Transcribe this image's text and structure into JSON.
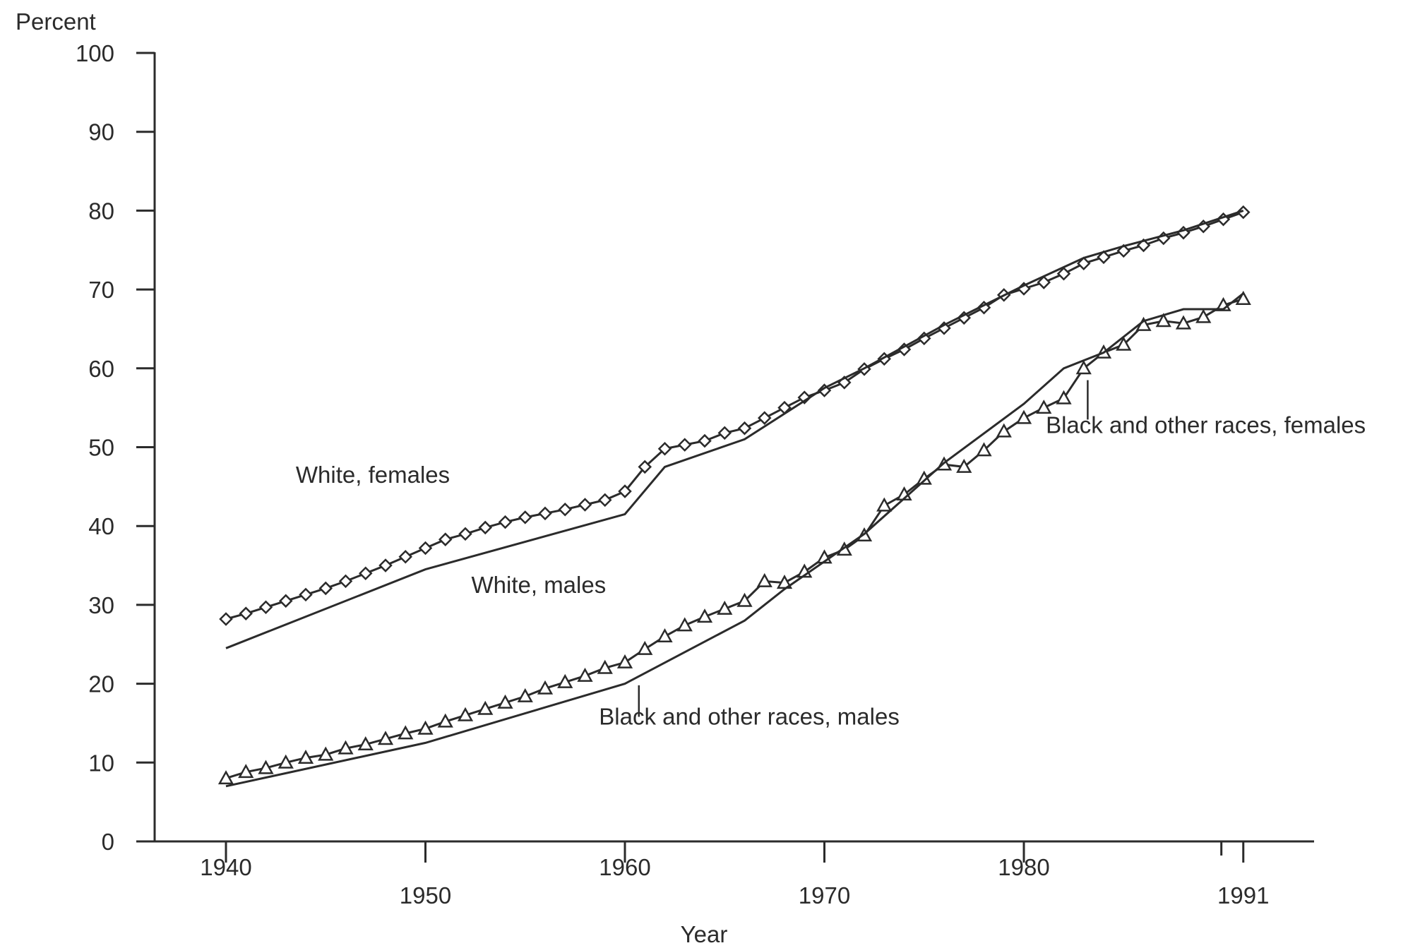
{
  "chart_data": {
    "type": "line",
    "ylabel": "Percent",
    "xlabel": "Year",
    "ylim": [
      0,
      100
    ],
    "xlim": [
      1936.5,
      1993.5
    ],
    "y_ticks": [
      "0",
      "10",
      "20",
      "30",
      "40",
      "50",
      "60",
      "70",
      "80",
      "90",
      "100"
    ],
    "x_ticks": [
      {
        "value": 1940,
        "label": "1940",
        "row": "upper"
      },
      {
        "value": 1950,
        "label": "1950",
        "row": "lower"
      },
      {
        "value": 1960,
        "label": "1960",
        "row": "upper"
      },
      {
        "value": 1970,
        "label": "1970",
        "row": "lower"
      },
      {
        "value": 1980,
        "label": "1980",
        "row": "upper"
      },
      {
        "value": 1991,
        "label": "1991",
        "row": "lower"
      }
    ],
    "grid": false,
    "series": [
      {
        "name": "White, females",
        "marker": "diamond",
        "x": [
          1940,
          1941,
          1942,
          1943,
          1944,
          1945,
          1946,
          1947,
          1948,
          1949,
          1950,
          1951,
          1952,
          1953,
          1954,
          1955,
          1956,
          1957,
          1958,
          1959,
          1960,
          1961,
          1962,
          1963,
          1964,
          1965,
          1966,
          1967,
          1968,
          1969,
          1970,
          1971,
          1972,
          1973,
          1974,
          1975,
          1976,
          1977,
          1978,
          1979,
          1980,
          1981,
          1982,
          1983,
          1984,
          1985,
          1986,
          1987,
          1988,
          1989,
          1990,
          1991
        ],
        "y": [
          28.2,
          28.9,
          29.7,
          30.5,
          31.3,
          32.1,
          33.0,
          34.0,
          35.0,
          36.1,
          37.2,
          38.3,
          39.0,
          39.8,
          40.5,
          41.1,
          41.6,
          42.1,
          42.7,
          43.3,
          44.4,
          47.5,
          49.8,
          50.3,
          50.8,
          51.8,
          52.4,
          53.7,
          55.0,
          56.3,
          57.2,
          58.2,
          59.9,
          61.2,
          62.4,
          63.8,
          65.1,
          66.4,
          67.7,
          69.3,
          70.1,
          70.9,
          72.0,
          73.3,
          74.1,
          74.9,
          75.6,
          76.5,
          77.2,
          78.0,
          78.9,
          79.8
        ]
      },
      {
        "name": "White, males",
        "marker": "none",
        "x": [
          1940,
          1950,
          1960,
          1962,
          1966,
          1970,
          1972,
          1976,
          1980,
          1983,
          1985,
          1988,
          1991
        ],
        "y": [
          24.5,
          34.5,
          41.5,
          47.5,
          51.0,
          57.5,
          60.0,
          65.5,
          70.5,
          74.0,
          75.5,
          77.5,
          80.0
        ]
      },
      {
        "name": "Black and other races, females",
        "marker": "triangle",
        "x": [
          1940,
          1941,
          1942,
          1943,
          1944,
          1945,
          1946,
          1947,
          1948,
          1949,
          1950,
          1951,
          1952,
          1953,
          1954,
          1955,
          1956,
          1957,
          1958,
          1959,
          1960,
          1961,
          1962,
          1963,
          1964,
          1965,
          1966,
          1967,
          1968,
          1969,
          1970,
          1971,
          1972,
          1973,
          1974,
          1975,
          1976,
          1977,
          1978,
          1979,
          1980,
          1981,
          1982,
          1983,
          1984,
          1985,
          1986,
          1987,
          1988,
          1989,
          1990,
          1991
        ],
        "y": [
          8.0,
          8.8,
          9.3,
          10.0,
          10.6,
          11.0,
          11.8,
          12.3,
          13.0,
          13.7,
          14.3,
          15.2,
          16.0,
          16.8,
          17.6,
          18.4,
          19.4,
          20.2,
          21.0,
          22.0,
          22.7,
          24.4,
          26.0,
          27.4,
          28.5,
          29.5,
          30.5,
          33.0,
          32.8,
          34.2,
          36.0,
          37.0,
          38.8,
          42.6,
          44.0,
          46.0,
          47.8,
          47.5,
          49.6,
          52.0,
          53.7,
          55.0,
          56.2,
          60.0,
          62.0,
          63.0,
          65.5,
          66.0,
          65.7,
          66.5,
          68.0,
          68.8
        ]
      },
      {
        "name": "Black and other races, males",
        "marker": "none",
        "x": [
          1940,
          1950,
          1960,
          1966,
          1968,
          1972,
          1976,
          1980,
          1982,
          1984,
          1986,
          1988,
          1990,
          1991
        ],
        "y": [
          7.0,
          12.5,
          20.0,
          28.0,
          32.0,
          39.0,
          48.0,
          55.5,
          60.0,
          62.0,
          66.0,
          67.5,
          67.5,
          69.5
        ]
      }
    ],
    "annotations": [
      {
        "text": "White, females",
        "x": 1943.5,
        "y": 45.5
      },
      {
        "text": "White, males",
        "x": 1952.3,
        "y": 31.5
      },
      {
        "text": "Black and other races, males",
        "x": 1958.7,
        "y": 14.8
      },
      {
        "text": "Black and other races, females",
        "x": 1981.1,
        "y": 51.8
      }
    ]
  }
}
